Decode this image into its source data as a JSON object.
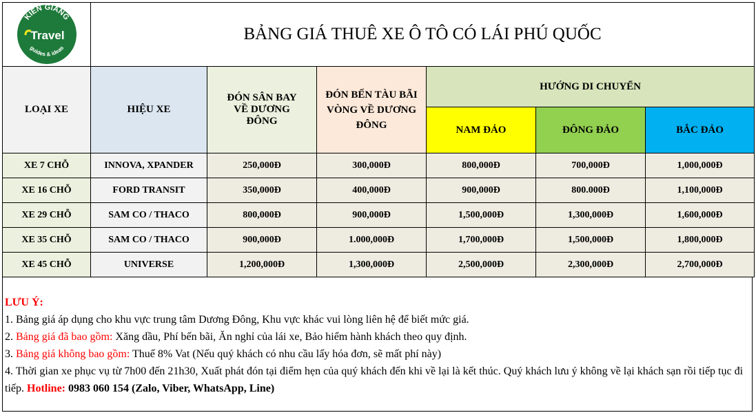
{
  "logo": {
    "top": "KIEN GIANG",
    "main": "Travel",
    "sub": "guides & ideas"
  },
  "title": "BẢNG GIÁ THUÊ XE Ô TÔ CÓ LÁI PHÚ QUỐC",
  "headers": {
    "loai_xe": "LOẠI XE",
    "hieu_xe": "HIỆU XE",
    "san_bay": "ĐÓN SÂN BAY VỀ DƯƠNG ĐÔNG",
    "ben_tau": "ĐÓN BẾN TÀU BÃI VÒNG VỀ DƯƠNG ĐÔNG",
    "huong": "HƯỚNG DI CHUYỂN",
    "nam": "NAM ĐẢO",
    "dong": "ĐÔNG ĐẢO",
    "bac": "BẮC ĐẢO"
  },
  "colors": {
    "nam": "#ffff00",
    "dong": "#92d050",
    "bac": "#00b0f0",
    "huong": "#d8e4bc",
    "san_bay": "#ebf1de",
    "ben_tau": "#fde9d9",
    "hieu_xe": "#dce6f1",
    "loai_xe": "#f2f2f2"
  },
  "rows": [
    {
      "loai": "XE 7 CHỖ",
      "hieu": "INNOVA, XPANDER",
      "san_bay": "250,000Đ",
      "ben_tau": "300,000Đ",
      "nam": "800,000Đ",
      "dong": "700,000Đ",
      "bac": "1,000,000Đ"
    },
    {
      "loai": "XE 16 CHỖ",
      "hieu": "FORD TRANSIT",
      "san_bay": "350,000Đ",
      "ben_tau": "400,000Đ",
      "nam": "900,000Đ",
      "dong": "800.000Đ",
      "bac": "1,100,000Đ"
    },
    {
      "loai": "XE 29 CHỖ",
      "hieu": "SAM CO / THACO",
      "san_bay": "800,000Đ",
      "ben_tau": "900,000Đ",
      "nam": "1,500,000Đ",
      "dong": "1,300,000Đ",
      "bac": "1,600,000Đ"
    },
    {
      "loai": "XE 35 CHỖ",
      "hieu": "SAM CO / THACO",
      "san_bay": "900,000Đ",
      "ben_tau": "1.000,000Đ",
      "nam": "1,700,000Đ",
      "dong": "1,500,000Đ",
      "bac": "1,800,000Đ"
    },
    {
      "loai": "XE 45 CHỖ",
      "hieu": "UNIVERSE",
      "san_bay": "1,200,000Đ",
      "ben_tau": "1,300,000Đ",
      "nam": "2,500,000Đ",
      "dong": "2,300,000Đ",
      "bac": "2,700,000Đ"
    }
  ],
  "notes": {
    "heading": "LƯU Ý:",
    "n1": "1. Bảng giá áp dụng cho khu vực trung tâm Dương Đông, Khu vực khác vui lòng liên hệ để biết mức giá.",
    "n2_prefix": "2. ",
    "n2_red": "Bảng giá đã bao gồm:",
    "n2_text": " Xăng dầu, Phí bến bãi, Ăn nghỉ của lái xe, Bảo hiểm hành khách theo quy định.",
    "n3_prefix": "3. ",
    "n3_red": "Bảng giá không bao gồm:",
    "n3_text": " Thuế 8% Vat (Nếu quý khách có nhu cầu lấy hóa đơn, sẽ mất phí này)",
    "n4_text": "4. Thời gian xe phục vụ từ 7h00 đến 21h30, Xuất phát đón tại điểm hẹn của quý khách đến khi về lại là kết thúc. Quý khách lưu ý không về lại khách sạn rồi tiếp tục đi tiếp. ",
    "hotline_label": "Hotline:",
    "hotline_value": " 0983 060 154 (Zalo, Viber, WhatsApp, Line)"
  }
}
